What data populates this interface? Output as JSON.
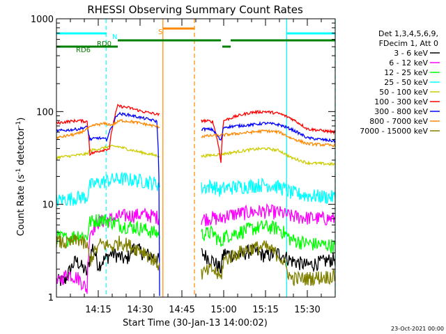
{
  "chart_data": {
    "type": "line",
    "title": "RHESSI Observing Summary Count Rates",
    "xlabel": "Start Time (30-Jan-13 14:00:02)",
    "ylabel_main": "Count Rate (s",
    "ylabel_sup1": "-1",
    "ylabel_mid": " detector",
    "ylabel_sup2": "-1",
    "ylabel_end": ")",
    "x_unit": "minutes after 14:00",
    "xlim": [
      0,
      100
    ],
    "ylim": [
      1,
      1000
    ],
    "yscale": "log",
    "x_ticks": [
      {
        "x": 15,
        "label": "14:15"
      },
      {
        "x": 30,
        "label": "14:30"
      },
      {
        "x": 45,
        "label": "14:45"
      },
      {
        "x": 60,
        "label": "15:00"
      },
      {
        "x": 75,
        "label": "15:15"
      },
      {
        "x": 90,
        "label": "15:30"
      }
    ],
    "y_ticks": [
      {
        "y": 1,
        "label": "1"
      },
      {
        "y": 10,
        "label": "10"
      },
      {
        "y": 100,
        "label": "100"
      },
      {
        "y": 1000,
        "label": "1000"
      }
    ],
    "legend_header": [
      "Det 1,3,4,5,6,9,",
      "FDecim 1, Att 0"
    ],
    "legend_position": "right",
    "footer_date": "23-Oct-2021 00:00",
    "series": [
      {
        "name": "3 - 6 keV",
        "color": "#000000",
        "values": [
          [
            3,
            1.5
          ],
          [
            7,
            2.5
          ],
          [
            11,
            1.8
          ],
          [
            13,
            3.5
          ],
          [
            15,
            2.2
          ],
          [
            20,
            3
          ],
          [
            25,
            2.5
          ],
          [
            28,
            3.5
          ],
          [
            31,
            3
          ],
          [
            34,
            2.8
          ],
          [
            38,
            2.4
          ],
          [
            52,
            3
          ],
          [
            56,
            2.5
          ],
          [
            59,
            2
          ],
          [
            60,
            3
          ],
          [
            65,
            2.8
          ],
          [
            70,
            3.2
          ],
          [
            75,
            2.8
          ],
          [
            80,
            3
          ],
          [
            84,
            2.5
          ],
          [
            90,
            2.2
          ],
          [
            100,
            2.6
          ]
        ]
      },
      {
        "name": "6 - 12 keV",
        "color": "#ff00ff",
        "values": [
          [
            0,
            1.4
          ],
          [
            4,
            1.8
          ],
          [
            8,
            1.6
          ],
          [
            11,
            1.2
          ],
          [
            12,
            5
          ],
          [
            15,
            6.5
          ],
          [
            20,
            7
          ],
          [
            23,
            7.5
          ],
          [
            26,
            7.6
          ],
          [
            31,
            7.8
          ],
          [
            35,
            7.5
          ],
          [
            37,
            7.2
          ],
          [
            52,
            7
          ],
          [
            56,
            7.2
          ],
          [
            59,
            6.9
          ],
          [
            60,
            7.5
          ],
          [
            65,
            8
          ],
          [
            70,
            8.3
          ],
          [
            75,
            8.5
          ],
          [
            80,
            8.2
          ],
          [
            84,
            7.5
          ],
          [
            90,
            7.2
          ],
          [
            100,
            7
          ]
        ]
      },
      {
        "name": "12 - 25 keV",
        "color": "#00ff00",
        "values": [
          [
            0,
            4.5
          ],
          [
            4,
            4.3
          ],
          [
            8,
            4.8
          ],
          [
            11,
            4.4
          ],
          [
            12,
            6.5
          ],
          [
            16,
            7
          ],
          [
            20,
            6.5
          ],
          [
            23,
            6
          ],
          [
            26,
            5.8
          ],
          [
            31,
            5.5
          ],
          [
            35,
            5
          ],
          [
            37,
            4.8
          ],
          [
            52,
            4.8
          ],
          [
            56,
            5
          ],
          [
            59,
            3.8
          ],
          [
            60,
            4.5
          ],
          [
            65,
            5
          ],
          [
            70,
            5.5
          ],
          [
            75,
            5.8
          ],
          [
            80,
            5.5
          ],
          [
            84,
            4.2
          ],
          [
            90,
            3.8
          ],
          [
            100,
            3.6
          ]
        ]
      },
      {
        "name": "25 - 50 keV",
        "color": "#00ffff",
        "values": [
          [
            0,
            11
          ],
          [
            4,
            11.5
          ],
          [
            8,
            12
          ],
          [
            11,
            12
          ],
          [
            12,
            16
          ],
          [
            16,
            17.5
          ],
          [
            20,
            18.5
          ],
          [
            23,
            19
          ],
          [
            27,
            18.5
          ],
          [
            31,
            18
          ],
          [
            35,
            17
          ],
          [
            37,
            16.5
          ],
          [
            52,
            15
          ],
          [
            56,
            16
          ],
          [
            59,
            14
          ],
          [
            60,
            15
          ],
          [
            65,
            15.5
          ],
          [
            70,
            16
          ],
          [
            75,
            16.5
          ],
          [
            80,
            15.5
          ],
          [
            84,
            13.5
          ],
          [
            90,
            12.5
          ],
          [
            100,
            12
          ]
        ]
      },
      {
        "name": "50 - 100 keV",
        "color": "#cccc00",
        "values": [
          [
            0,
            32
          ],
          [
            4,
            33
          ],
          [
            8,
            34
          ],
          [
            11,
            35
          ],
          [
            12,
            38
          ],
          [
            16,
            40
          ],
          [
            19,
            42
          ],
          [
            22,
            42
          ],
          [
            26,
            39
          ],
          [
            31,
            36
          ],
          [
            35,
            34
          ],
          [
            37,
            33
          ],
          [
            52,
            33
          ],
          [
            56,
            34
          ],
          [
            60,
            35
          ],
          [
            65,
            37
          ],
          [
            70,
            39
          ],
          [
            75,
            40
          ],
          [
            80,
            38
          ],
          [
            84,
            32
          ],
          [
            90,
            28
          ],
          [
            100,
            27
          ]
        ]
      },
      {
        "name": "100 - 300 keV",
        "color": "#ff0000",
        "values": [
          [
            0,
            75
          ],
          [
            4,
            78
          ],
          [
            8,
            80
          ],
          [
            11,
            78
          ],
          [
            12,
            35
          ],
          [
            16,
            38
          ],
          [
            19,
            40
          ],
          [
            22,
            115
          ],
          [
            26,
            110
          ],
          [
            31,
            100
          ],
          [
            35,
            95
          ],
          [
            37,
            92
          ],
          [
            52,
            80
          ],
          [
            56,
            78
          ],
          [
            59,
            28
          ],
          [
            60,
            80
          ],
          [
            65,
            90
          ],
          [
            70,
            98
          ],
          [
            75,
            100
          ],
          [
            80,
            95
          ],
          [
            84,
            85
          ],
          [
            90,
            65
          ],
          [
            100,
            60
          ]
        ]
      },
      {
        "name": "300 - 800 keV",
        "color": "#0000ff",
        "values": [
          [
            0,
            62
          ],
          [
            4,
            63
          ],
          [
            8,
            65
          ],
          [
            11,
            68
          ],
          [
            12,
            50
          ],
          [
            15,
            52
          ],
          [
            18,
            50
          ],
          [
            20,
            70
          ],
          [
            22,
            95
          ],
          [
            26,
            92
          ],
          [
            31,
            85
          ],
          [
            35,
            80
          ],
          [
            36,
            78
          ],
          [
            37,
            1
          ],
          [
            52,
            65
          ],
          [
            56,
            64
          ],
          [
            59,
            48
          ],
          [
            60,
            68
          ],
          [
            65,
            70
          ],
          [
            70,
            72
          ],
          [
            75,
            75
          ],
          [
            80,
            72
          ],
          [
            84,
            65
          ],
          [
            90,
            52
          ],
          [
            100,
            48
          ]
        ]
      },
      {
        "name": "800 - 7000 keV",
        "color": "#ff8800",
        "values": [
          [
            0,
            52
          ],
          [
            4,
            55
          ],
          [
            8,
            58
          ],
          [
            11,
            65
          ],
          [
            14,
            72
          ],
          [
            17,
            74
          ],
          [
            20,
            72
          ],
          [
            23,
            80
          ],
          [
            27,
            78
          ],
          [
            31,
            74
          ],
          [
            35,
            70
          ],
          [
            37,
            68
          ],
          [
            52,
            54
          ],
          [
            56,
            55
          ],
          [
            60,
            56
          ],
          [
            65,
            58
          ],
          [
            70,
            60
          ],
          [
            75,
            62
          ],
          [
            80,
            60
          ],
          [
            84,
            52
          ],
          [
            90,
            45
          ],
          [
            100,
            43
          ]
        ]
      },
      {
        "name": "7000 - 15000 keV",
        "color": "#808000",
        "values": [
          [
            0,
            4
          ],
          [
            4,
            3.8
          ],
          [
            8,
            4.2
          ],
          [
            11,
            3.5
          ],
          [
            12,
            2.5
          ],
          [
            16,
            3.8
          ],
          [
            20,
            3.5
          ],
          [
            23,
            4
          ],
          [
            27,
            3.5
          ],
          [
            31,
            3.2
          ],
          [
            35,
            2.5
          ],
          [
            37,
            2.2
          ],
          [
            52,
            1.8
          ],
          [
            56,
            2
          ],
          [
            59,
            1.6
          ],
          [
            60,
            2.5
          ],
          [
            65,
            3
          ],
          [
            70,
            3.4
          ],
          [
            75,
            3.5
          ],
          [
            80,
            2.8
          ],
          [
            84,
            1.6
          ],
          [
            90,
            1.6
          ],
          [
            100,
            1.7
          ]
        ]
      }
    ],
    "vlines": [
      {
        "x": 17.8,
        "color": "#00ffff",
        "style": "dashed"
      },
      {
        "x": 38.2,
        "color": "#ff8800",
        "style": "solid"
      },
      {
        "x": 49.5,
        "color": "#ff8800",
        "style": "dashed"
      },
      {
        "x": 82.6,
        "color": "#00ffff",
        "style": "solid"
      },
      {
        "x": 100,
        "color": "#00ffff",
        "style": "dashed"
      }
    ],
    "flag_bars": [
      {
        "x1": 0,
        "x2": 18,
        "level": 1,
        "color": "#00ffff"
      },
      {
        "x1": 82.5,
        "x2": 100,
        "level": 1,
        "color": "#00ffff"
      },
      {
        "x1": 0,
        "x2": 12,
        "level": 3,
        "color": "#008000"
      },
      {
        "x1": 12,
        "x2": 22,
        "level": 3,
        "color": "#008000"
      },
      {
        "x1": 22,
        "x2": 59,
        "level": 2,
        "color": "#008000"
      },
      {
        "x1": 59.5,
        "x2": 62.5,
        "level": 3,
        "color": "#008000"
      },
      {
        "x1": 62.5,
        "x2": 100,
        "level": 2,
        "color": "#008000"
      },
      {
        "x1": 38.2,
        "x2": 49.5,
        "level": 0,
        "color": "#ff8800"
      }
    ],
    "flag_labels": [
      {
        "x": 20,
        "level": 1,
        "text": "N",
        "color": "#00ffff"
      },
      {
        "x": 14.5,
        "level": 2,
        "text": "RD0",
        "color": "#008000"
      },
      {
        "x": 7,
        "level": 3,
        "text": "RD6",
        "color": "#008000"
      },
      {
        "x": 36.5,
        "level": 0,
        "text": "S",
        "color": "#ff8800"
      }
    ]
  }
}
